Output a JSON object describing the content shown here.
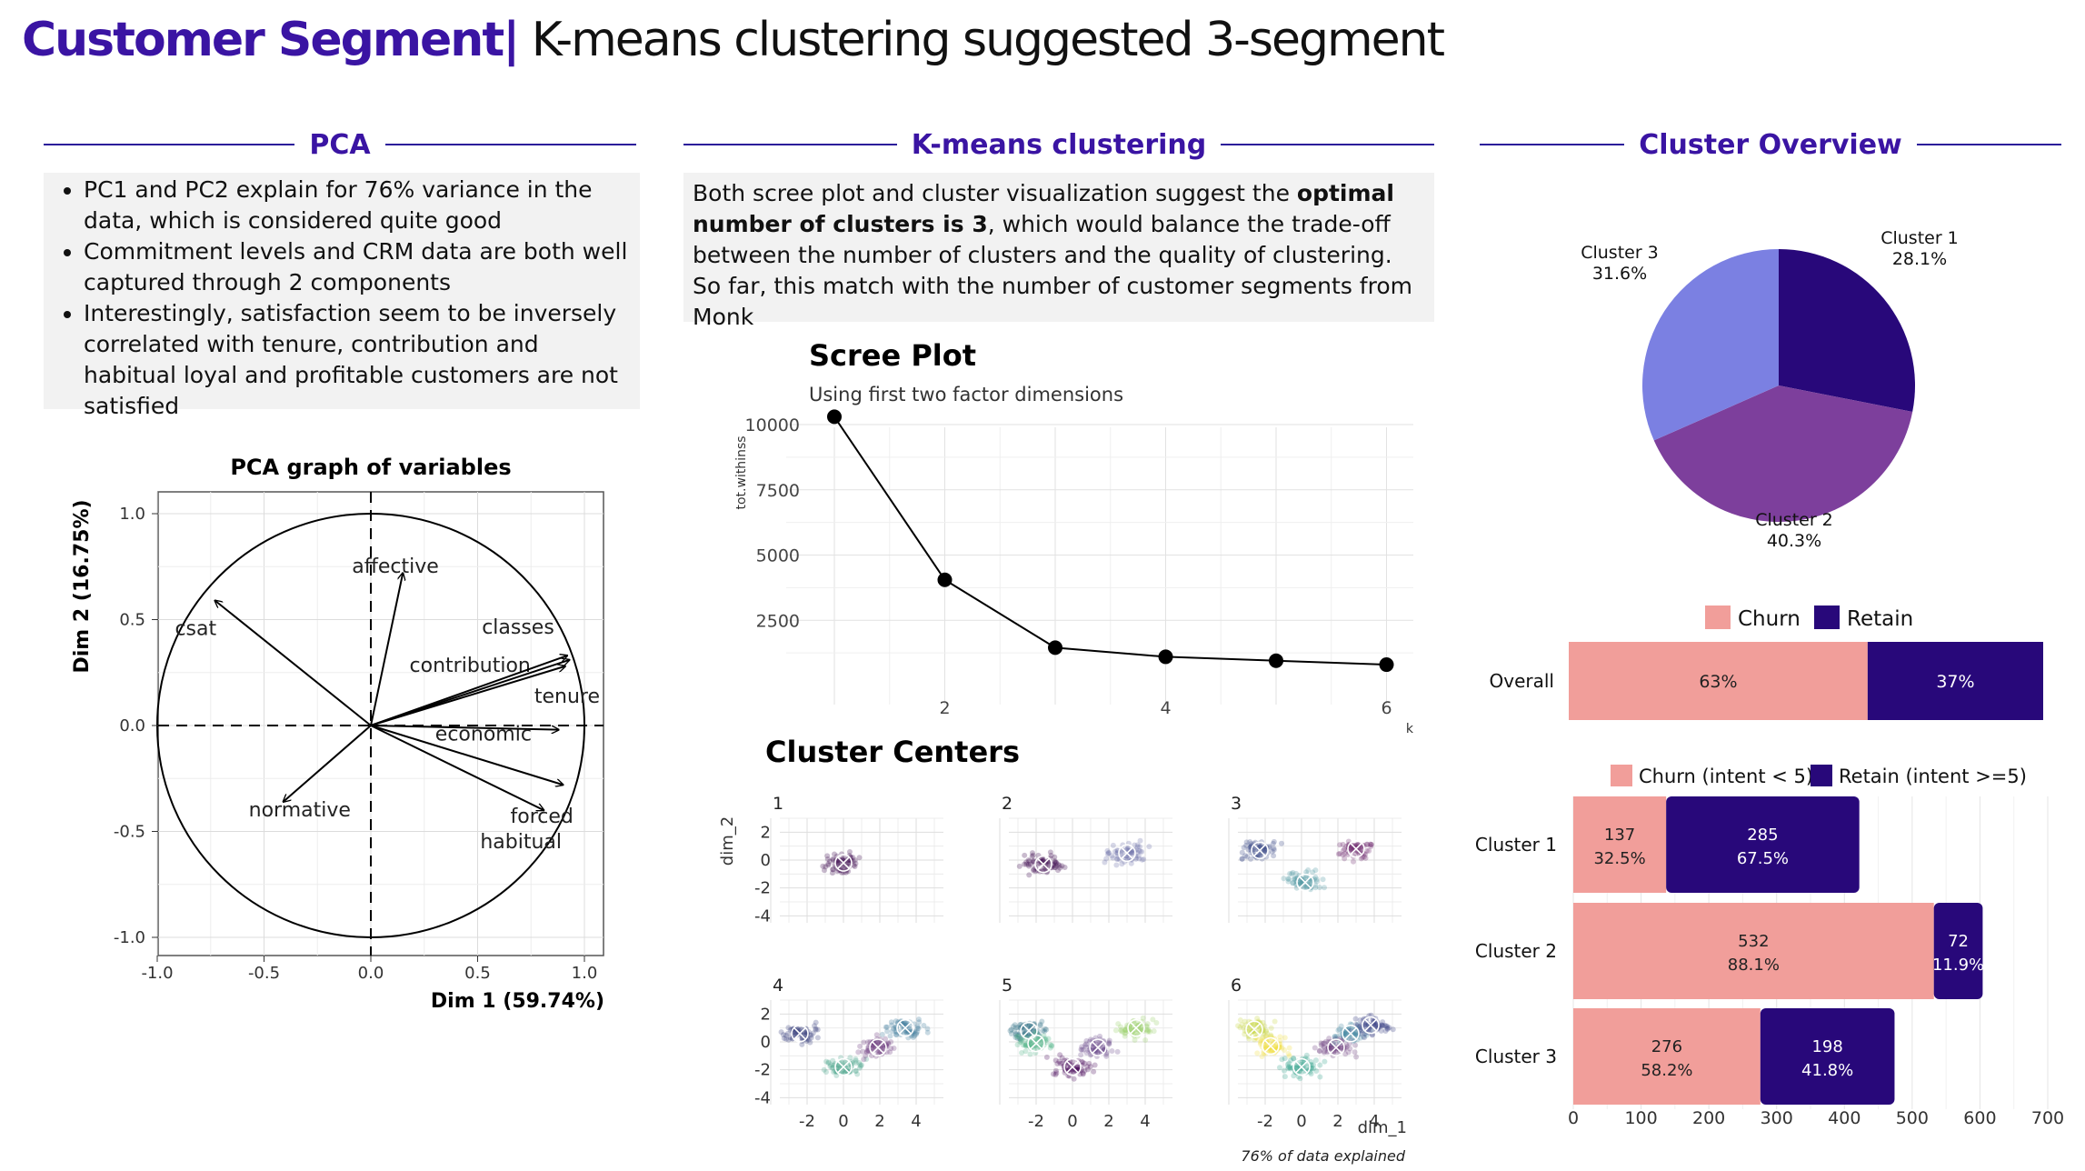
{
  "title": {
    "strong": "Customer Segment",
    "sep": "|",
    "rest": " K-means clustering suggested 3-segment"
  },
  "pca": {
    "heading": "PCA",
    "bullets": [
      "PC1 and PC2 explain for 76% variance in the data, which is considered quite good",
      "Commitment levels and CRM data are both well captured through 2 components",
      "Interestingly, satisfaction seem to be inversely correlated with  tenure, contribution and habitual loyal and profitable customers are not satisfied"
    ]
  },
  "kmeans": {
    "heading": "K-means clustering",
    "note_pre": "Both scree plot and cluster visualization suggest the ",
    "note_bold": "optimal number of clusters is 3",
    "note_post": ", which would balance the trade-off between the number of clusters and the quality of clustering. So far, this match with the number of customer segments from Monk",
    "footnote": "76% of data explained"
  },
  "overview": {
    "heading": "Cluster Overview"
  },
  "colors": {
    "brand": "#3a14a3",
    "churn": "#f19e9a",
    "retain": "#28087a",
    "cluster1": "#28087a",
    "cluster2": "#7d3f9c",
    "cluster3": "#7b80e2"
  },
  "chart_data": [
    {
      "type": "scatter",
      "title": "PCA graph of variables",
      "xlabel": "Dim 1 (59.74%)",
      "ylabel": "Dim 2 (16.75%)",
      "xlim": [
        -1.0,
        1.0
      ],
      "ylim": [
        -1.0,
        1.0
      ],
      "x_ticks": [
        "-1.0",
        "-0.5",
        "0.0",
        "0.5",
        "1.0"
      ],
      "y_ticks": [
        "1.0",
        "0.5",
        "0.0",
        "-0.5",
        "-1.0"
      ],
      "grid": true,
      "vectors": [
        {
          "name": "csat",
          "x": -0.73,
          "y": 0.59
        },
        {
          "name": "affective",
          "x": 0.15,
          "y": 0.72
        },
        {
          "name": "contribution",
          "x": 0.93,
          "y": 0.31
        },
        {
          "name": "classes",
          "x": 0.92,
          "y": 0.33
        },
        {
          "name": "tenure",
          "x": 0.91,
          "y": 0.28
        },
        {
          "name": "economic",
          "x": 0.88,
          "y": -0.02
        },
        {
          "name": "forced",
          "x": 0.9,
          "y": -0.28
        },
        {
          "name": "habitual",
          "x": 0.81,
          "y": -0.4
        },
        {
          "name": "normative",
          "x": -0.41,
          "y": -0.36
        }
      ]
    },
    {
      "type": "line",
      "title": "Scree Plot",
      "subtitle": "Using first two factor dimensions",
      "xlabel": "k",
      "ylabel": "tot.withinss",
      "x": [
        1,
        2,
        3,
        4,
        5,
        6
      ],
      "y": [
        10300,
        4050,
        1450,
        1100,
        950,
        800
      ],
      "x_ticks": [
        "2",
        "4",
        "6"
      ],
      "y_ticks": [
        "10000",
        "7500",
        "5000",
        "2500"
      ],
      "xlim": [
        1,
        6
      ],
      "ylim": [
        0,
        10500
      ]
    },
    {
      "type": "scatter",
      "title": "Cluster Centers",
      "xlabel": "dim_1",
      "ylabel": "dim_2",
      "panels": [
        "1",
        "2",
        "3",
        "4",
        "5",
        "6"
      ],
      "x_ticks": [
        "-2",
        "0",
        "2",
        "4"
      ],
      "y_ticks": [
        "2",
        "0",
        "-2",
        "-4"
      ],
      "xlim": [
        -3.5,
        5.5
      ],
      "ylim": [
        -4.5,
        3.0
      ],
      "centers": [
        [
          [
            0.0,
            -0.2
          ]
        ],
        [
          [
            -1.6,
            -0.3
          ],
          [
            3.0,
            0.5
          ]
        ],
        [
          [
            -2.3,
            0.7
          ],
          [
            0.2,
            -1.6
          ],
          [
            3.0,
            0.8
          ]
        ],
        [
          [
            -2.4,
            0.6
          ],
          [
            0.0,
            -1.8
          ],
          [
            1.9,
            -0.4
          ],
          [
            3.4,
            1.0
          ]
        ],
        [
          [
            -2.4,
            0.8
          ],
          [
            0.0,
            -1.8
          ],
          [
            1.4,
            -0.4
          ],
          [
            3.5,
            1.0
          ],
          [
            -2.0,
            -0.1
          ]
        ],
        [
          [
            -2.6,
            0.9
          ],
          [
            -1.7,
            -0.3
          ],
          [
            0.0,
            -1.8
          ],
          [
            1.9,
            -0.4
          ],
          [
            2.7,
            0.6
          ],
          [
            3.8,
            1.2
          ]
        ]
      ]
    },
    {
      "type": "pie",
      "labels": [
        "Cluster 1",
        "Cluster 2",
        "Cluster 3"
      ],
      "values": [
        28.1,
        40.3,
        31.6
      ],
      "value_labels": [
        "28.1%",
        "40.3%",
        "31.6%"
      ]
    },
    {
      "type": "bar",
      "orientation": "horizontal",
      "stacked": true,
      "categories": [
        "Overall"
      ],
      "series": [
        {
          "name": "Churn",
          "values": [
            63
          ]
        },
        {
          "name": "Retain",
          "values": [
            37
          ]
        }
      ],
      "value_labels": [
        [
          "63%"
        ],
        [
          "37%"
        ]
      ],
      "legend": "top"
    },
    {
      "type": "bar",
      "orientation": "horizontal",
      "stacked": true,
      "categories": [
        "Cluster 1",
        "Cluster 2",
        "Cluster 3"
      ],
      "series": [
        {
          "name": "Churn (intent < 5)",
          "values": [
            137,
            532,
            276
          ],
          "pct": [
            "32.5%",
            "88.1%",
            "58.2%"
          ]
        },
        {
          "name": "Retain (intent >=5)",
          "values": [
            285,
            72,
            198
          ],
          "pct": [
            "67.5%",
            "11.9%",
            "41.8%"
          ]
        }
      ],
      "x_ticks": [
        "0",
        "100",
        "200",
        "300",
        "400",
        "500",
        "600",
        "700"
      ],
      "xlim": [
        0,
        700
      ],
      "grid": true,
      "legend": "top"
    }
  ]
}
